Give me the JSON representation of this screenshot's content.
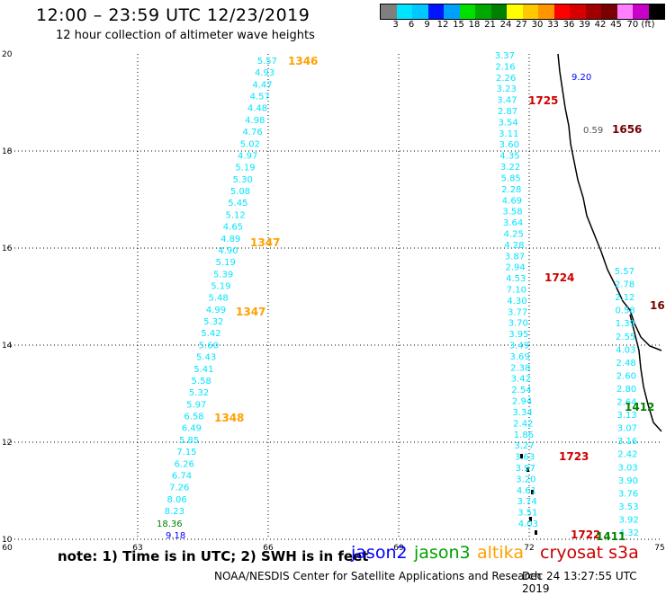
{
  "title": "12:00 – 23:59 UTC 12/23/2019",
  "subtitle": "12 hour collection of altimeter wave heights",
  "colorbar": {
    "colors": [
      "#7f7f7f",
      "#00e5ff",
      "#00c8ff",
      "#0014ff",
      "#00a0ff",
      "#00e000",
      "#00a800",
      "#008000",
      "#ffff00",
      "#ffc800",
      "#ff9600",
      "#ff0000",
      "#d70000",
      "#a00000",
      "#780000",
      "#ff80ff",
      "#c800c8",
      "#000000"
    ],
    "labels": [
      "3",
      "6",
      "9",
      "12",
      "15",
      "18",
      "21",
      "24",
      "27",
      "30",
      "33",
      "36",
      "39",
      "42",
      "45",
      "70 (ft)"
    ]
  },
  "axes": {
    "x_ticks": [
      "60",
      "63",
      "66",
      "69",
      "72",
      "75"
    ],
    "y_ticks": [
      "10",
      "12",
      "14",
      "16",
      "18",
      "20"
    ]
  },
  "note": "note:  1) Time is in UTC;  2) SWH is in feet",
  "legend": [
    {
      "label": "jason2",
      "color": "#0000ff"
    },
    {
      "label": "jason3",
      "color": "#00a000"
    },
    {
      "label": "altika",
      "color": "#ffa000"
    },
    {
      "label": "cryosat s3a",
      "color": "#cc0000"
    }
  ],
  "credit": "NOAA/NESDIS Center for Satellite Applications and Research",
  "timestamp": "Dec 24 13:27:55 UTC 2019",
  "tracks": [
    {
      "name": "altika-left",
      "color": "#00e5ff",
      "labels": [
        "5.57",
        "4.93",
        "4.47",
        "4.57",
        "4.48",
        "4.98",
        "4.76",
        "5.02",
        "4.97",
        "5.19",
        "5.30",
        "5.08",
        "5.45",
        "5.12",
        "4.65",
        "4.89",
        "4.90",
        "5.19",
        "5.39",
        "5.19",
        "5.48",
        "4.99",
        "5.32",
        "5.42",
        "5.60",
        "5.43",
        "5.41",
        "5.58",
        "5.32",
        "5.97",
        "6.58",
        "6.49",
        "5.85",
        "7.15",
        "6.26",
        "6.74",
        "7.26",
        "8.06",
        "8.23"
      ]
    },
    {
      "name": "cryo-mid",
      "color": "#00e5ff",
      "labels": [
        "3.37",
        "2.16",
        "2.26",
        "3.23",
        "3.47",
        "2.87",
        "3.54",
        "3.11",
        "3.60",
        "4.35",
        "3.22",
        "5.85",
        "2.28",
        "4.69",
        "3.58",
        "3.64",
        "4.25",
        "4.28",
        "3.87",
        "2.94",
        "4.53",
        "7.10",
        "4.30",
        "3.77",
        "3.70",
        "3.95",
        "3.49",
        "3.69",
        "2.38",
        "3.42",
        "2.54",
        "2.94",
        "3.34",
        "2.42",
        "1.86",
        "3.27",
        "3.63",
        "3.97",
        "3.20",
        "4.61",
        "3.74",
        "3.51",
        "4.03"
      ]
    },
    {
      "name": "right",
      "color": "#00e5ff",
      "labels": [
        "5.57",
        "2.78",
        "2.12",
        "0.58",
        "1.39",
        "2.55",
        "4.03",
        "2.48",
        "2.60",
        "2.80",
        "2.64",
        "3.13",
        "3.07",
        "3.16",
        "2.42",
        "3.03",
        "3.90",
        "3.76",
        "3.53",
        "3.92",
        "4.32"
      ]
    }
  ],
  "extra_labels": [
    {
      "text": "18.36",
      "color": "#008000"
    },
    {
      "text": "9.18",
      "color": "#0000ff"
    },
    {
      "text": "9.20",
      "color": "#0000ff"
    },
    {
      "text": "0.59",
      "color": "#555555"
    }
  ],
  "pass_ids": [
    {
      "text": "1346",
      "color": "#ffa000"
    },
    {
      "text": "1347",
      "color": "#ffa000"
    },
    {
      "text": "1347",
      "color": "#ffa000"
    },
    {
      "text": "1348",
      "color": "#ffa000"
    },
    {
      "text": "1725",
      "color": "#cc0000"
    },
    {
      "text": "1656",
      "color": "#780000"
    },
    {
      "text": "1724",
      "color": "#cc0000"
    },
    {
      "text": "16",
      "color": "#780000"
    },
    {
      "text": "1412",
      "color": "#008000"
    },
    {
      "text": "1723",
      "color": "#cc0000"
    },
    {
      "text": "1722",
      "color": "#cc0000"
    },
    {
      "text": "1411",
      "color": "#008000"
    }
  ]
}
